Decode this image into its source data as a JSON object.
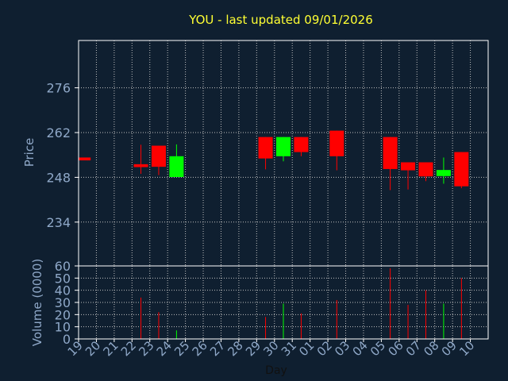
{
  "chart_data": {
    "type": "candlestick",
    "title": "YOU - last updated 09/01/2026",
    "xlabel": "Day",
    "price_panel": {
      "ylabel": "Price",
      "yticks": [
        234,
        248,
        262,
        276
      ],
      "ylim": [
        220.3,
        290.8
      ]
    },
    "volume_panel": {
      "ylabel": "Volume (0000)",
      "yticks": [
        0,
        10,
        20,
        30,
        40,
        50,
        60
      ],
      "ylim": [
        0,
        60
      ]
    },
    "x_labels": [
      "19",
      "20",
      "21",
      "22",
      "23",
      "24",
      "25",
      "26",
      "27",
      "28",
      "29",
      "30",
      "31",
      "01",
      "02",
      "03",
      "04",
      "05",
      "06",
      "07",
      "08",
      "09",
      "10"
    ],
    "candles": [
      {
        "x": "19",
        "open": 254.2,
        "close": 253.3,
        "high": 254.2,
        "low": 253.3,
        "volume": 0
      },
      {
        "x": "22",
        "open": 252.1,
        "close": 251.2,
        "high": 258.2,
        "low": 249.1,
        "volume": 34
      },
      {
        "x": "23",
        "open": 257.9,
        "close": 251.3,
        "high": 257.9,
        "low": 248.7,
        "volume": 22
      },
      {
        "x": "24",
        "open": 248.1,
        "close": 254.6,
        "high": 258.3,
        "low": 248.1,
        "volume": 7
      },
      {
        "x": "29",
        "open": 260.6,
        "close": 253.9,
        "high": 260.6,
        "low": 250.5,
        "volume": 18
      },
      {
        "x": "30",
        "open": 254.6,
        "close": 260.6,
        "high": 260.6,
        "low": 253.0,
        "volume": 29
      },
      {
        "x": "31",
        "open": 260.6,
        "close": 255.9,
        "high": 260.6,
        "low": 254.6,
        "volume": 21
      },
      {
        "x": "02",
        "open": 262.6,
        "close": 254.6,
        "high": 262.6,
        "low": 250.2,
        "volume": 32
      },
      {
        "x": "05",
        "open": 260.6,
        "close": 250.6,
        "high": 260.6,
        "low": 244.0,
        "volume": 58
      },
      {
        "x": "06",
        "open": 252.7,
        "close": 250.2,
        "high": 252.7,
        "low": 244.2,
        "volume": 28
      },
      {
        "x": "07",
        "open": 252.7,
        "close": 248.3,
        "high": 252.7,
        "low": 246.8,
        "volume": 40
      },
      {
        "x": "08",
        "open": 248.4,
        "close": 250.3,
        "high": 254.2,
        "low": 246.0,
        "volume": 29
      },
      {
        "x": "09",
        "open": 255.9,
        "close": 245.2,
        "high": 255.9,
        "low": 244.6,
        "volume": 50
      }
    ],
    "grid": true,
    "colors": {
      "background": "#0f1f30",
      "title": "#ffff33",
      "axis_text": "#8fa8c8",
      "up": "#00ff00",
      "down": "#ff0000",
      "grid": "#c0c0c0",
      "frame": "#ffffff",
      "xlabel": "#111111"
    }
  }
}
